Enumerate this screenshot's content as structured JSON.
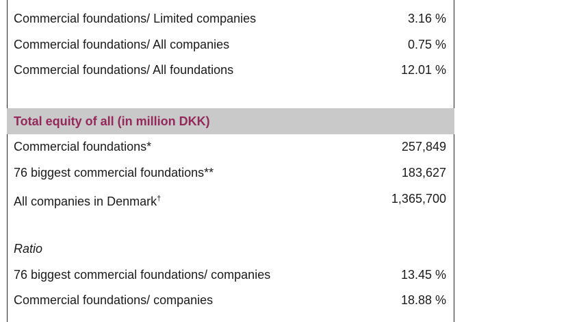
{
  "sections": [
    {
      "rows": [
        {
          "label": "Commercial foundations/ Limited companies",
          "value": "3.16 %"
        },
        {
          "label": "Commercial foundations/ All companies",
          "value": "0.75 %"
        },
        {
          "label": "Commercial foundations/ All foundations",
          "value": "12.01 %"
        }
      ]
    },
    {
      "heading": "Total equity of all (in million DKK)",
      "rows": [
        {
          "label": "Commercial foundations*",
          "value": "257,849"
        },
        {
          "label": "76 biggest commercial foundations**",
          "value": "183,627"
        },
        {
          "label": "All companies in Denmark",
          "sup": "†",
          "value": "1,365,700"
        }
      ]
    },
    {
      "subheading": "Ratio",
      "rows": [
        {
          "label": "76 biggest commercial foundations/ companies",
          "value": "13.45 %"
        },
        {
          "label": "Commercial foundations/ companies",
          "value": "18.88 %"
        }
      ]
    }
  ]
}
